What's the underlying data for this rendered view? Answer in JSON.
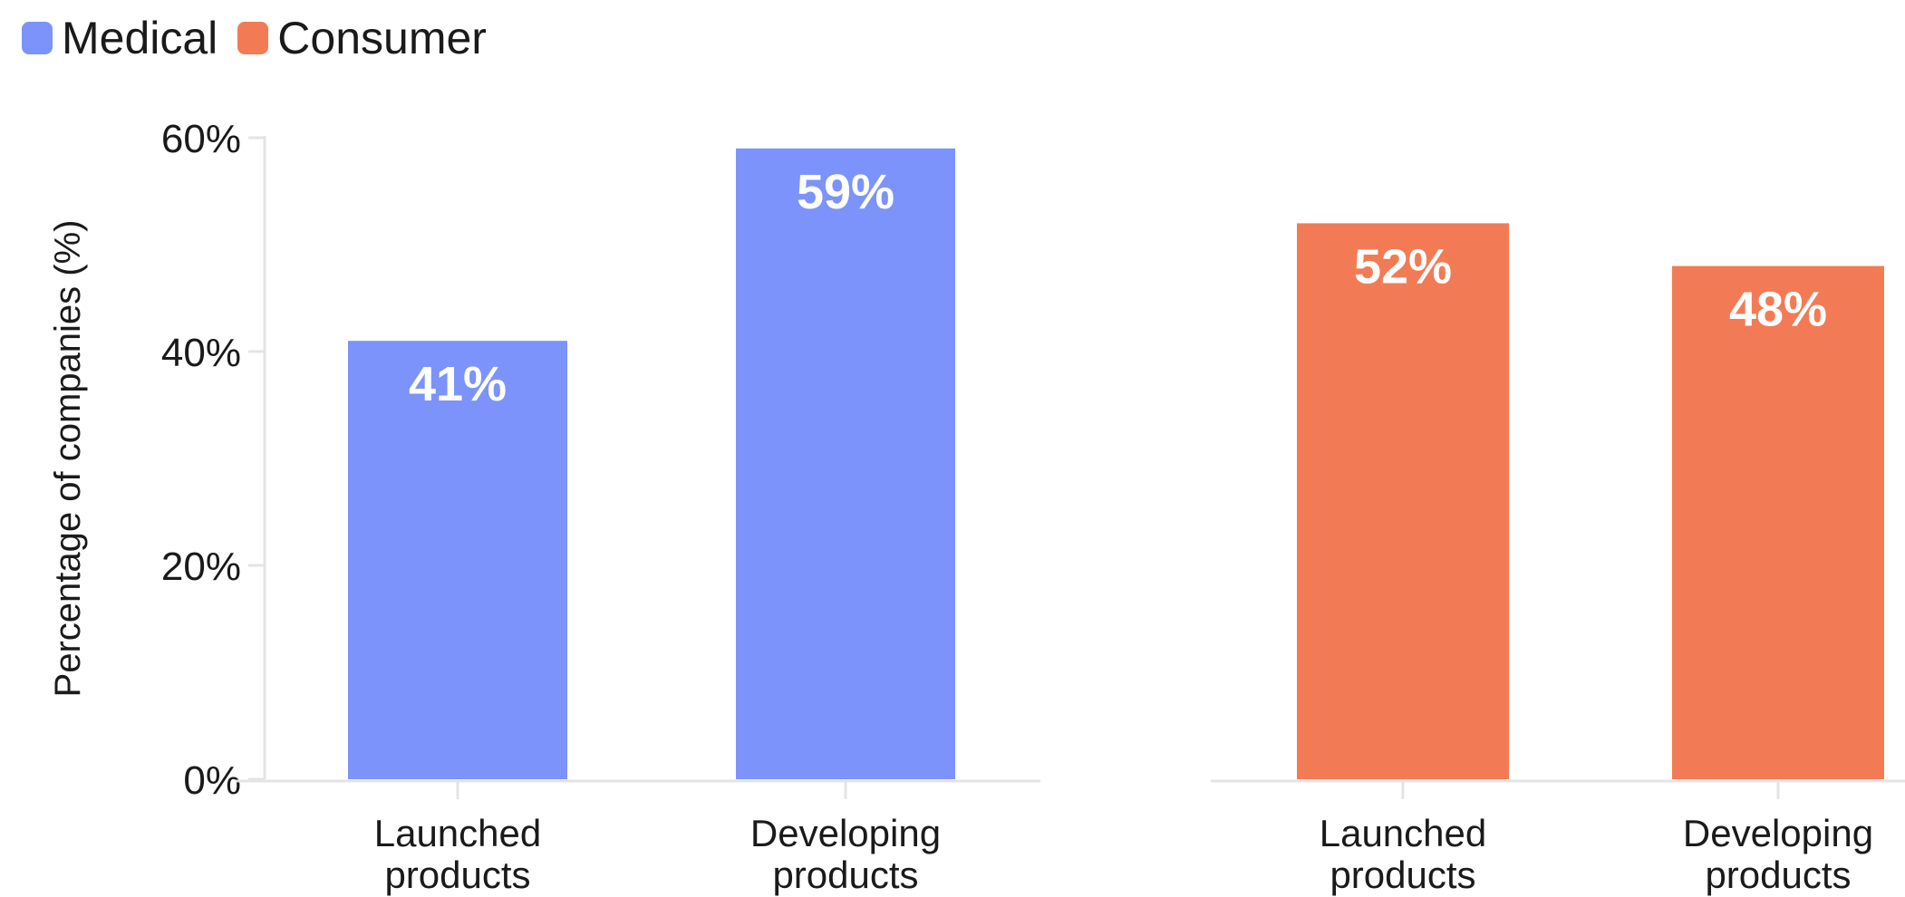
{
  "chart_data": {
    "type": "bar",
    "legend": [
      {
        "name": "Medical",
        "color": "#7b93fb"
      },
      {
        "name": "Consumer",
        "color": "#f27b55"
      }
    ],
    "ylabel": "Percentage of companies (%)",
    "ylim": [
      0,
      60
    ],
    "yticks": [
      "0%",
      "20%",
      "40%",
      "60%"
    ],
    "panels": [
      {
        "series": "Medical",
        "color": "#7b93fb",
        "categories": [
          "Launched\nproducts",
          "Developing\nproducts"
        ],
        "values": [
          41,
          59
        ],
        "labels": [
          "41%",
          "59%"
        ]
      },
      {
        "series": "Consumer",
        "color": "#f27b55",
        "categories": [
          "Launched\nproducts",
          "Developing\nproducts"
        ],
        "values": [
          52,
          48
        ],
        "labels": [
          "52%",
          "48%"
        ]
      }
    ]
  }
}
